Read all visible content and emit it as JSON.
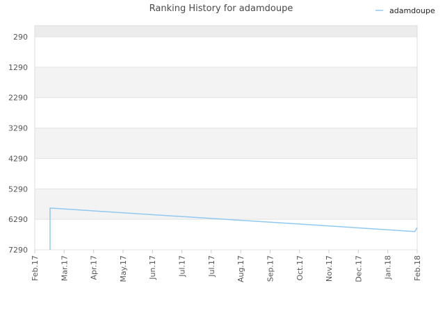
{
  "chart_data": {
    "type": "line",
    "title": "Ranking History for adamdoupe",
    "xlabel": "",
    "ylabel": "",
    "y_inverted": true,
    "ylim": [
      290,
      7290
    ],
    "y_ticks": [
      290,
      1290,
      2290,
      3290,
      4290,
      5290,
      6290,
      7290
    ],
    "x_ticks": [
      "Feb.17",
      "Mar.17",
      "Apr.17",
      "May.17",
      "Jun.17",
      "Jul.17",
      "Jul.17",
      "Aug.17",
      "Sep.17",
      "Oct.17",
      "Nov.17",
      "Dec.17",
      "Jan.18",
      "Feb.18"
    ],
    "grid": true,
    "legend_position": "top-right",
    "colors": {
      "series": "#90c8f0",
      "band": "#f3f3f3",
      "top_band": "#ececec",
      "grid": "#e2e2e2"
    },
    "series": [
      {
        "name": "adamdoupe",
        "points": [
          {
            "x": "Feb.17 +0.52",
            "y": 7290
          },
          {
            "x": "Feb.17 +0.52",
            "y": 5920
          },
          {
            "x": "Feb.18 -0.08",
            "y": 6690
          },
          {
            "x": "Feb.18",
            "y": 6560
          }
        ]
      }
    ]
  }
}
